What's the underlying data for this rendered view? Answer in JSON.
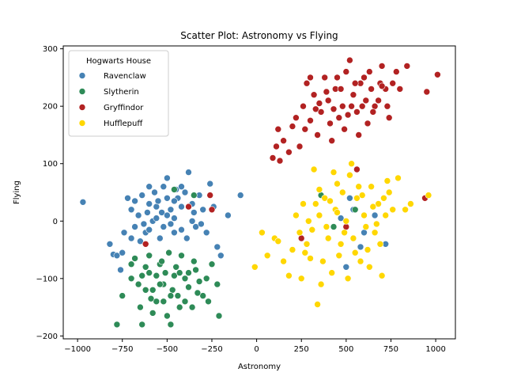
{
  "chart_data": {
    "type": "scatter",
    "title": "Scatter Plot: Astronomy vs Flying",
    "xlabel": "Astronomy",
    "ylabel": "Flying",
    "xlim": [
      -1080,
      1110
    ],
    "ylim": [
      -205,
      305
    ],
    "xticks": [
      -1000,
      -750,
      -500,
      -250,
      0,
      250,
      500,
      750,
      1000
    ],
    "yticks": [
      -200,
      -100,
      0,
      100,
      200,
      300
    ],
    "grid": false,
    "legend": {
      "title": "Hogwarts House",
      "placement": "top-left"
    },
    "series": [
      {
        "name": "Ravenclaw",
        "color": "#4682b4",
        "values": [
          [
            -970,
            33
          ],
          [
            -820,
            -40
          ],
          [
            -800,
            -58
          ],
          [
            -780,
            -60
          ],
          [
            -760,
            -85
          ],
          [
            -750,
            -55
          ],
          [
            -720,
            40
          ],
          [
            -700,
            20
          ],
          [
            -680,
            -10
          ],
          [
            -660,
            10
          ],
          [
            -640,
            45
          ],
          [
            -620,
            -20
          ],
          [
            -600,
            30
          ],
          [
            -580,
            0
          ],
          [
            -560,
            25
          ],
          [
            -540,
            -30
          ],
          [
            -520,
            60
          ],
          [
            -500,
            75
          ],
          [
            -480,
            20
          ],
          [
            -460,
            5
          ],
          [
            -440,
            40
          ],
          [
            -420,
            -15
          ],
          [
            -400,
            50
          ],
          [
            -380,
            85
          ],
          [
            -360,
            30
          ],
          [
            -340,
            -10
          ],
          [
            -320,
            45
          ],
          [
            -300,
            20
          ],
          [
            -280,
            -20
          ],
          [
            -260,
            65
          ],
          [
            -240,
            25
          ],
          [
            -220,
            -45
          ],
          [
            -200,
            -60
          ],
          [
            -160,
            10
          ],
          [
            -90,
            45
          ],
          [
            -650,
            -35
          ],
          [
            -600,
            60
          ],
          [
            -550,
            35
          ],
          [
            -450,
            55
          ],
          [
            -420,
            25
          ],
          [
            -350,
            15
          ],
          [
            -480,
            -5
          ],
          [
            -530,
            15
          ],
          [
            -700,
            -30
          ],
          [
            -610,
            15
          ],
          [
            -500,
            40
          ],
          [
            -460,
            -20
          ],
          [
            -310,
            -5
          ],
          [
            -570,
            50
          ],
          [
            -630,
            -5
          ],
          [
            -680,
            35
          ],
          [
            -740,
            -20
          ],
          [
            -390,
            -30
          ],
          [
            -520,
            -10
          ],
          [
            -420,
            60
          ],
          [
            -560,
            5
          ],
          [
            -460,
            35
          ],
          [
            -600,
            -15
          ],
          [
            -500,
            10
          ],
          [
            -360,
            0
          ],
          [
            540,
            20
          ],
          [
            720,
            -40
          ],
          [
            580,
            -45
          ],
          [
            500,
            -80
          ],
          [
            660,
            10
          ],
          [
            470,
            5
          ],
          [
            600,
            -20
          ],
          [
            520,
            40
          ]
        ]
      },
      {
        "name": "Slytherin",
        "color": "#2e8b57",
        "values": [
          [
            -780,
            -180
          ],
          [
            -750,
            -130
          ],
          [
            -700,
            -100
          ],
          [
            -680,
            -65
          ],
          [
            -650,
            -150
          ],
          [
            -640,
            -180
          ],
          [
            -620,
            -120
          ],
          [
            -600,
            -90
          ],
          [
            -580,
            -160
          ],
          [
            -560,
            -140
          ],
          [
            -540,
            -75
          ],
          [
            -520,
            -110
          ],
          [
            -500,
            -165
          ],
          [
            -480,
            -180
          ],
          [
            -460,
            -95
          ],
          [
            -440,
            -130
          ],
          [
            -420,
            -60
          ],
          [
            -400,
            -140
          ],
          [
            -380,
            -115
          ],
          [
            -360,
            -150
          ],
          [
            -340,
            -85
          ],
          [
            -320,
            -105
          ],
          [
            -300,
            -130
          ],
          [
            -280,
            -100
          ],
          [
            -250,
            -75
          ],
          [
            -210,
            -165
          ],
          [
            -220,
            -110
          ],
          [
            -600,
            -60
          ],
          [
            -540,
            -110
          ],
          [
            -470,
            -120
          ],
          [
            -430,
            -90
          ],
          [
            -490,
            -55
          ],
          [
            -560,
            -95
          ],
          [
            -620,
            -80
          ],
          [
            -660,
            -110
          ],
          [
            -700,
            -75
          ],
          [
            -520,
            -140
          ],
          [
            -450,
            -80
          ],
          [
            -400,
            -100
          ],
          [
            -350,
            -70
          ],
          [
            -510,
            -90
          ],
          [
            -580,
            -120
          ],
          [
            -480,
            -130
          ],
          [
            -430,
            -150
          ],
          [
            -380,
            -90
          ],
          [
            -330,
            -125
          ],
          [
            -270,
            -140
          ],
          [
            -640,
            -95
          ],
          [
            -590,
            -135
          ],
          [
            -530,
            -70
          ],
          [
            -460,
            55
          ],
          [
            -350,
            45
          ],
          [
            360,
            45
          ],
          [
            550,
            20
          ],
          [
            430,
            -10
          ]
        ]
      },
      {
        "name": "Gryffindor",
        "color": "#b22222",
        "values": [
          [
            90,
            110
          ],
          [
            110,
            130
          ],
          [
            120,
            160
          ],
          [
            130,
            105
          ],
          [
            150,
            140
          ],
          [
            180,
            120
          ],
          [
            200,
            165
          ],
          [
            220,
            180
          ],
          [
            240,
            130
          ],
          [
            260,
            200
          ],
          [
            280,
            240
          ],
          [
            300,
            175
          ],
          [
            320,
            220
          ],
          [
            340,
            150
          ],
          [
            360,
            190
          ],
          [
            380,
            250
          ],
          [
            400,
            210
          ],
          [
            420,
            140
          ],
          [
            440,
            230
          ],
          [
            460,
            180
          ],
          [
            480,
            200
          ],
          [
            500,
            260
          ],
          [
            520,
            280
          ],
          [
            540,
            220
          ],
          [
            560,
            190
          ],
          [
            580,
            240
          ],
          [
            600,
            250
          ],
          [
            620,
            170
          ],
          [
            640,
            230
          ],
          [
            660,
            200
          ],
          [
            680,
            210
          ],
          [
            700,
            270
          ],
          [
            720,
            230
          ],
          [
            740,
            180
          ],
          [
            760,
            240
          ],
          [
            780,
            260
          ],
          [
            800,
            230
          ],
          [
            840,
            270
          ],
          [
            950,
            225
          ],
          [
            1010,
            255
          ],
          [
            300,
            250
          ],
          [
            350,
            205
          ],
          [
            410,
            170
          ],
          [
            450,
            250
          ],
          [
            490,
            160
          ],
          [
            530,
            200
          ],
          [
            570,
            150
          ],
          [
            610,
            210
          ],
          [
            650,
            190
          ],
          [
            690,
            240
          ],
          [
            730,
            200
          ],
          [
            470,
            230
          ],
          [
            510,
            185
          ],
          [
            550,
            240
          ],
          [
            590,
            200
          ],
          [
            630,
            260
          ],
          [
            430,
            195
          ],
          [
            390,
            225
          ],
          [
            330,
            195
          ],
          [
            270,
            160
          ],
          [
            -380,
            25
          ],
          [
            -260,
            45
          ],
          [
            -620,
            -40
          ],
          [
            -250,
            20
          ],
          [
            500,
            -10
          ],
          [
            560,
            90
          ],
          [
            940,
            40
          ],
          [
            250,
            -30
          ],
          [
            700,
            235
          ]
        ]
      },
      {
        "name": "Hufflepuff",
        "color": "#ffd700",
        "values": [
          [
            -10,
            -80
          ],
          [
            30,
            -20
          ],
          [
            60,
            -60
          ],
          [
            100,
            -30
          ],
          [
            120,
            -35
          ],
          [
            150,
            -70
          ],
          [
            180,
            -95
          ],
          [
            200,
            -50
          ],
          [
            220,
            10
          ],
          [
            240,
            -20
          ],
          [
            250,
            -100
          ],
          [
            260,
            30
          ],
          [
            280,
            -40
          ],
          [
            300,
            -65
          ],
          [
            320,
            90
          ],
          [
            340,
            -145
          ],
          [
            350,
            10
          ],
          [
            360,
            -110
          ],
          [
            380,
            40
          ],
          [
            400,
            -30
          ],
          [
            420,
            -90
          ],
          [
            430,
            85
          ],
          [
            440,
            20
          ],
          [
            460,
            -60
          ],
          [
            480,
            50
          ],
          [
            500,
            0
          ],
          [
            520,
            80
          ],
          [
            540,
            -30
          ],
          [
            560,
            40
          ],
          [
            580,
            -70
          ],
          [
            600,
            10
          ],
          [
            620,
            -50
          ],
          [
            640,
            60
          ],
          [
            660,
            -20
          ],
          [
            680,
            30
          ],
          [
            700,
            -95
          ],
          [
            720,
            10
          ],
          [
            740,
            50
          ],
          [
            760,
            20
          ],
          [
            790,
            75
          ],
          [
            830,
            20
          ],
          [
            860,
            30
          ],
          [
            960,
            45
          ],
          [
            450,
            65
          ],
          [
            530,
            100
          ],
          [
            470,
            -40
          ],
          [
            410,
            35
          ],
          [
            390,
            -10
          ],
          [
            510,
            -100
          ],
          [
            570,
            60
          ],
          [
            610,
            -10
          ],
          [
            650,
            25
          ],
          [
            690,
            -40
          ],
          [
            730,
            70
          ],
          [
            350,
            55
          ],
          [
            310,
            -15
          ],
          [
            290,
            0
          ],
          [
            270,
            -55
          ],
          [
            330,
            30
          ],
          [
            370,
            -70
          ],
          [
            450,
            15
          ],
          [
            490,
            -20
          ],
          [
            550,
            -55
          ],
          [
            590,
            45
          ],
          [
            630,
            -80
          ],
          [
            670,
            -5
          ],
          [
            710,
            40
          ]
        ]
      }
    ]
  }
}
